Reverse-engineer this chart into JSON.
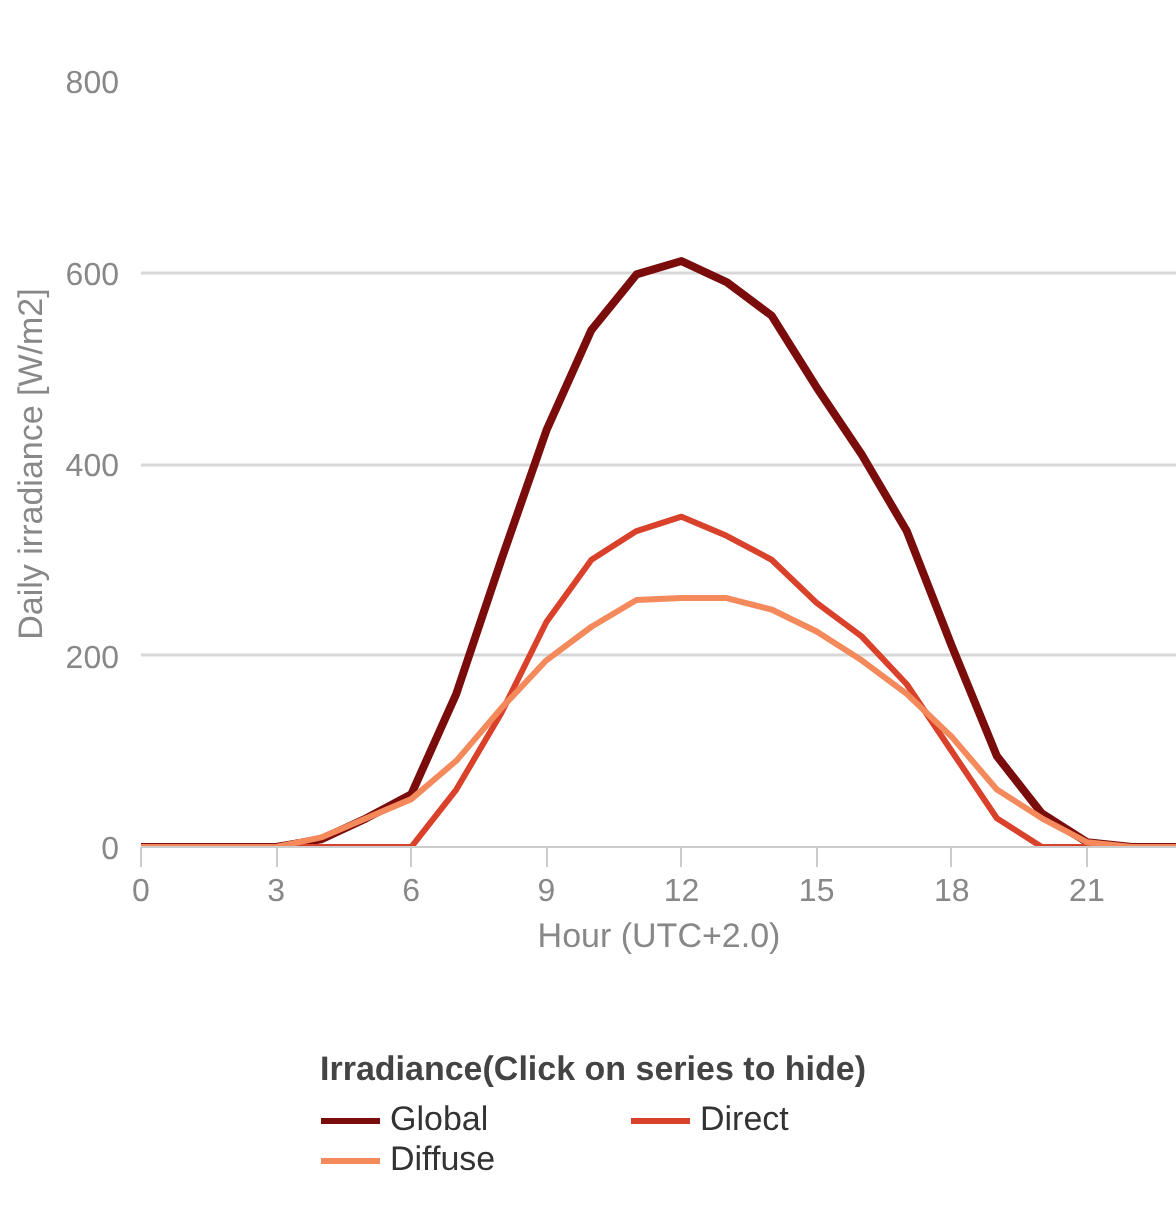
{
  "chart_data": {
    "type": "line",
    "xlabel": "Hour (UTC+2.0)",
    "ylabel": "Daily irradiance [W/m2]",
    "legend_title": "Irradiance(Click on series to hide)",
    "x": [
      0,
      1,
      2,
      3,
      4,
      5,
      6,
      7,
      8,
      9,
      10,
      11,
      12,
      13,
      14,
      15,
      16,
      17,
      18,
      19,
      20,
      21,
      22,
      23
    ],
    "series": [
      {
        "name": "Global",
        "color": "#7b0c0c",
        "values": [
          0,
          0,
          0,
          0,
          8,
          30,
          55,
          160,
          300,
          435,
          540,
          598,
          612,
          590,
          555,
          480,
          410,
          330,
          210,
          95,
          35,
          5,
          0,
          0
        ]
      },
      {
        "name": "Direct",
        "color": "#d9412b",
        "values": [
          0,
          0,
          0,
          0,
          0,
          0,
          0,
          60,
          140,
          235,
          300,
          330,
          345,
          325,
          300,
          255,
          220,
          170,
          100,
          30,
          0,
          0,
          0,
          0
        ]
      },
      {
        "name": "Diffuse",
        "color": "#f4895c",
        "values": [
          0,
          0,
          0,
          0,
          10,
          30,
          50,
          90,
          145,
          195,
          230,
          258,
          260,
          260,
          248,
          225,
          195,
          160,
          115,
          60,
          30,
          5,
          0,
          0
        ]
      }
    ],
    "xlim": [
      0,
      23
    ],
    "ylim": [
      0,
      800
    ],
    "xticks": [
      0,
      3,
      6,
      9,
      12,
      15,
      18,
      21
    ],
    "yticks": [
      0,
      200,
      400,
      600,
      800
    ],
    "grid": "y",
    "legend": "bottom",
    "marker": "none",
    "line_style": "solid"
  }
}
